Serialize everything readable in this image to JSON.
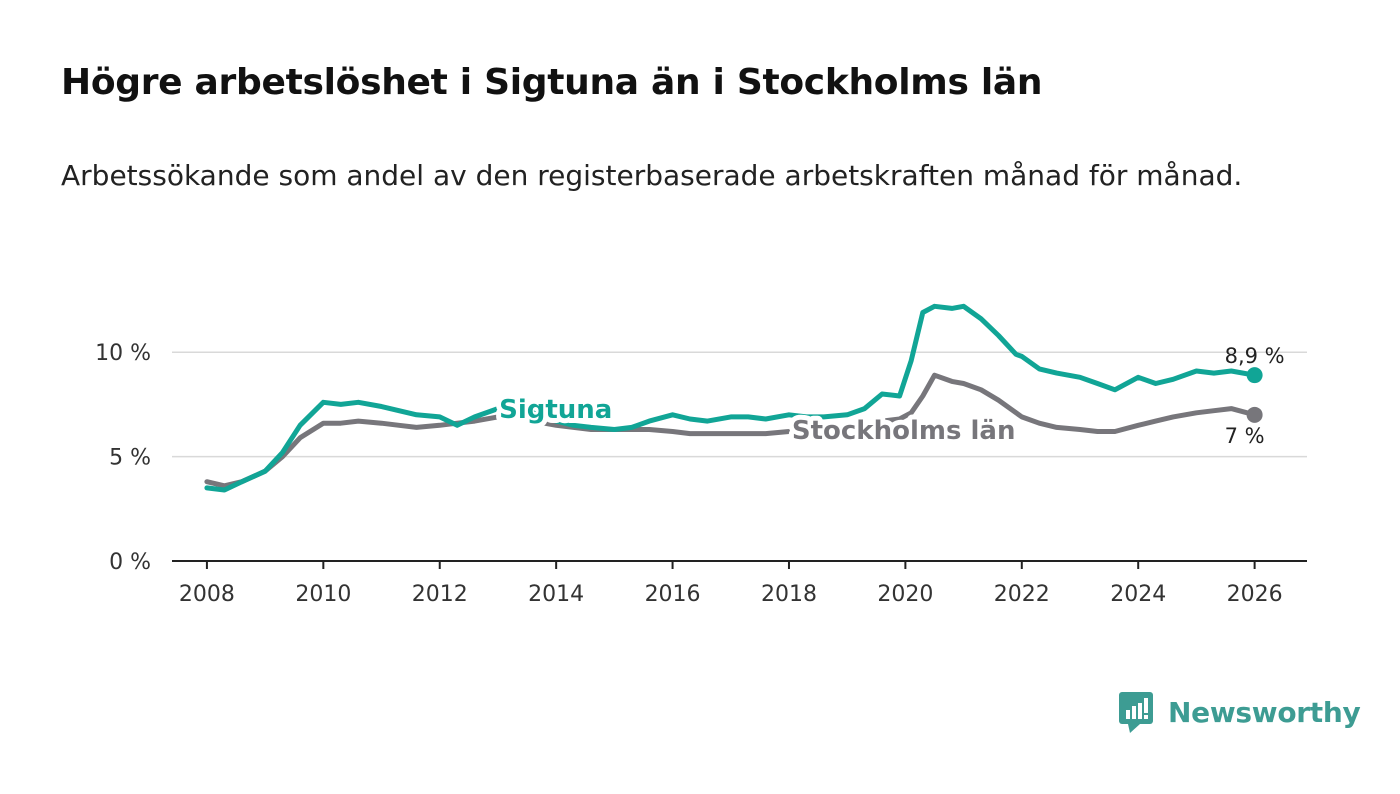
{
  "header": {
    "title": "Högre arbetslöshet i Sigtuna än i Stockholms län",
    "subtitle": "Arbetssökande som andel av den registerbaserade arbetskraften månad för månad."
  },
  "brand": {
    "name": "Newsworthy",
    "color": "#3d9c93"
  },
  "chart_data": {
    "type": "line",
    "title": "Högre arbetslöshet i Sigtuna än i Stockholms län",
    "subtitle": "Arbetssökande som andel av den registerbaserade arbetskraften månad för månad.",
    "xlabel": "",
    "ylabel": "",
    "xlim": [
      2007.4,
      2026.9
    ],
    "ylim": [
      0,
      12.5
    ],
    "x_ticks": [
      2008,
      2010,
      2012,
      2014,
      2016,
      2018,
      2020,
      2022,
      2024,
      2026
    ],
    "x_tick_labels": [
      "2008",
      "2010",
      "2012",
      "2014",
      "2016",
      "2018",
      "2020",
      "2022",
      "2024",
      "2026"
    ],
    "y_ticks": [
      0,
      5,
      10
    ],
    "y_tick_labels": [
      "0 %",
      "5 %",
      "10 %"
    ],
    "grid": "horizontal",
    "series": [
      {
        "name": "Stockholms län",
        "label": "Stockholms län",
        "color": "#77767b",
        "end_label": "7 %",
        "x": [
          2008.0,
          2008.3,
          2008.6,
          2009.0,
          2009.3,
          2009.6,
          2010.0,
          2010.3,
          2010.6,
          2011.0,
          2011.3,
          2011.6,
          2012.0,
          2012.3,
          2012.6,
          2013.0,
          2013.3,
          2013.6,
          2014.0,
          2014.3,
          2014.6,
          2015.0,
          2015.3,
          2015.6,
          2016.0,
          2016.3,
          2016.6,
          2017.0,
          2017.3,
          2017.6,
          2018.0,
          2018.3,
          2018.6,
          2019.0,
          2019.3,
          2019.6,
          2019.9,
          2020.1,
          2020.3,
          2020.5,
          2020.8,
          2021.0,
          2021.3,
          2021.6,
          2022.0,
          2022.3,
          2022.6,
          2023.0,
          2023.3,
          2023.6,
          2024.0,
          2024.3,
          2024.6,
          2025.0,
          2025.3,
          2025.6,
          2026.0
        ],
        "values": [
          3.8,
          3.6,
          3.8,
          4.3,
          5.0,
          5.9,
          6.6,
          6.6,
          6.7,
          6.6,
          6.5,
          6.4,
          6.5,
          6.6,
          6.7,
          6.9,
          6.9,
          6.7,
          6.5,
          6.4,
          6.3,
          6.3,
          6.3,
          6.3,
          6.2,
          6.1,
          6.1,
          6.1,
          6.1,
          6.1,
          6.2,
          6.3,
          6.4,
          6.5,
          6.6,
          6.7,
          6.8,
          7.1,
          7.9,
          8.9,
          8.6,
          8.5,
          8.2,
          7.7,
          6.9,
          6.6,
          6.4,
          6.3,
          6.2,
          6.2,
          6.5,
          6.7,
          6.9,
          7.1,
          7.2,
          7.3,
          7.0
        ]
      },
      {
        "name": "Sigtuna",
        "label": "Sigtuna",
        "color": "#11a596",
        "end_label": "8,9 %",
        "x": [
          2008.0,
          2008.3,
          2008.6,
          2009.0,
          2009.3,
          2009.6,
          2010.0,
          2010.3,
          2010.6,
          2011.0,
          2011.3,
          2011.6,
          2012.0,
          2012.3,
          2012.6,
          2013.0,
          2013.3,
          2013.6,
          2014.0,
          2014.3,
          2014.6,
          2015.0,
          2015.3,
          2015.6,
          2016.0,
          2016.3,
          2016.6,
          2017.0,
          2017.3,
          2017.6,
          2018.0,
          2018.3,
          2018.6,
          2019.0,
          2019.3,
          2019.6,
          2019.9,
          2020.1,
          2020.3,
          2020.5,
          2020.8,
          2021.0,
          2021.3,
          2021.6,
          2021.9,
          2022.0,
          2022.3,
          2022.6,
          2023.0,
          2023.3,
          2023.6,
          2024.0,
          2024.3,
          2024.6,
          2025.0,
          2025.3,
          2025.6,
          2026.0
        ],
        "values": [
          3.5,
          3.4,
          3.8,
          4.3,
          5.2,
          6.5,
          7.6,
          7.5,
          7.6,
          7.4,
          7.2,
          7.0,
          6.9,
          6.5,
          6.9,
          7.3,
          7.4,
          7.1,
          6.7,
          6.5,
          6.4,
          6.3,
          6.4,
          6.7,
          7.0,
          6.8,
          6.7,
          6.9,
          6.9,
          6.8,
          7.0,
          6.9,
          6.9,
          7.0,
          7.3,
          8.0,
          7.9,
          9.6,
          11.9,
          12.2,
          12.1,
          12.2,
          11.6,
          10.8,
          9.9,
          9.8,
          9.2,
          9.0,
          8.8,
          8.5,
          8.2,
          8.8,
          8.5,
          8.7,
          9.1,
          9.0,
          9.1,
          8.9
        ]
      }
    ]
  }
}
